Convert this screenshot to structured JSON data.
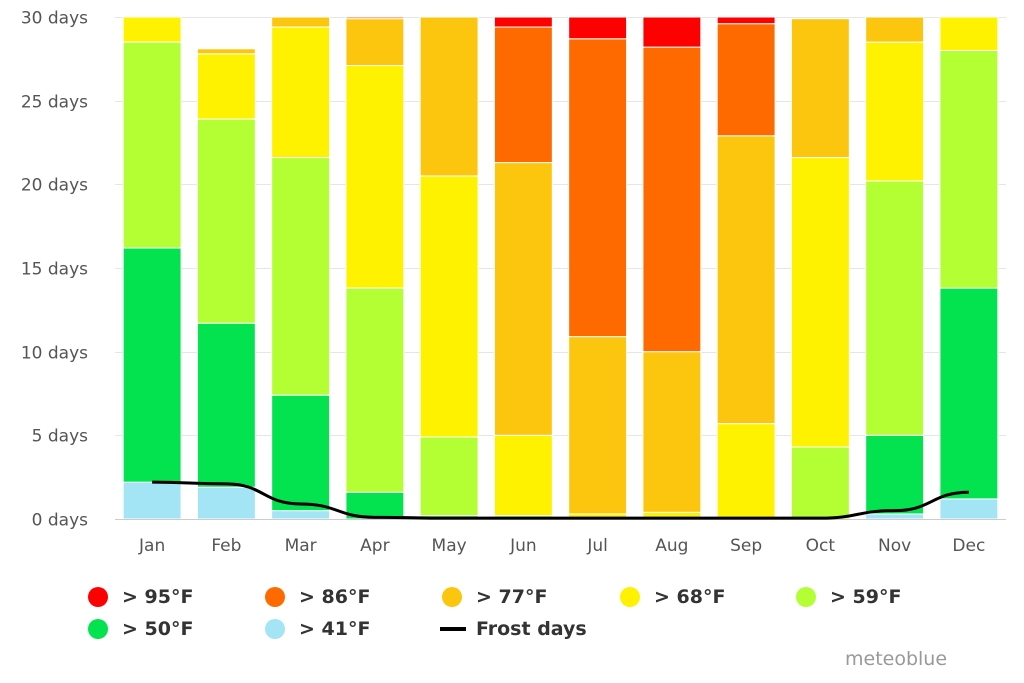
{
  "chart_data": {
    "type": "bar",
    "stacked": true,
    "title": "",
    "xlabel": "",
    "ylabel": "",
    "ylim": [
      0,
      30
    ],
    "y_ticks": [
      "0 days",
      "5 days",
      "10 days",
      "15 days",
      "20 days",
      "25 days",
      "30 days"
    ],
    "y_tick_values": [
      0,
      5,
      10,
      15,
      20,
      25,
      30
    ],
    "grid": true,
    "categories": [
      "Jan",
      "Feb",
      "Mar",
      "Apr",
      "May",
      "Jun",
      "Jul",
      "Aug",
      "Sep",
      "Oct",
      "Nov",
      "Dec"
    ],
    "series": [
      {
        "name": "> 41°F",
        "color": "#a3e4f5",
        "values": [
          2.2,
          1.9,
          0.5,
          0.0,
          0.0,
          0.0,
          0.0,
          0.0,
          0.0,
          0.0,
          0.3,
          1.2
        ]
      },
      {
        "name": "> 50°F",
        "color": "#02e34f",
        "values": [
          14.0,
          9.8,
          6.9,
          1.6,
          0.2,
          0.0,
          0.0,
          0.0,
          0.0,
          0.0,
          4.7,
          12.6
        ]
      },
      {
        "name": "> 59°F",
        "color": "#b3ff33",
        "values": [
          12.3,
          12.2,
          14.2,
          12.2,
          4.7,
          0.2,
          0.0,
          0.0,
          0.1,
          4.3,
          15.2,
          14.2
        ]
      },
      {
        "name": "> 68°F",
        "color": "#fff200",
        "values": [
          1.5,
          3.9,
          7.8,
          13.3,
          15.6,
          4.8,
          0.3,
          0.4,
          5.6,
          17.3,
          8.3,
          2.0
        ]
      },
      {
        "name": "> 77°F",
        "color": "#fdc60e",
        "values": [
          0.0,
          0.3,
          0.6,
          2.8,
          9.5,
          16.3,
          10.6,
          9.6,
          17.2,
          8.3,
          1.5,
          0.0
        ]
      },
      {
        "name": "> 86°F",
        "color": "#ff6a00",
        "values": [
          0.0,
          0.0,
          0.0,
          0.1,
          0.0,
          8.1,
          17.8,
          18.2,
          6.7,
          0.0,
          0.0,
          0.0
        ]
      },
      {
        "name": "> 95°F",
        "color": "#ff0000",
        "values": [
          0.0,
          0.0,
          0.0,
          0.0,
          0.0,
          0.6,
          1.3,
          1.8,
          0.4,
          0.0,
          0.0,
          0.0
        ]
      }
    ],
    "line_series": {
      "name": "Frost days",
      "color": "#000000",
      "values": [
        2.2,
        2.1,
        0.9,
        0.1,
        0.05,
        0.05,
        0.05,
        0.05,
        0.05,
        0.05,
        0.5,
        1.6
      ]
    },
    "legend": {
      "placement": "bottom",
      "items": [
        {
          "label": "> 95°F",
          "color": "#ff0000",
          "type": "dot"
        },
        {
          "label": "> 86°F",
          "color": "#ff6a00",
          "type": "dot"
        },
        {
          "label": "> 77°F",
          "color": "#fdc60e",
          "type": "dot"
        },
        {
          "label": "> 68°F",
          "color": "#fff200",
          "type": "dot"
        },
        {
          "label": "> 59°F",
          "color": "#b3ff33",
          "type": "dot"
        },
        {
          "label": "> 50°F",
          "color": "#02e34f",
          "type": "dot"
        },
        {
          "label": "> 41°F",
          "color": "#a3e4f5",
          "type": "dot"
        },
        {
          "label": "Frost days",
          "color": "#000000",
          "type": "line"
        }
      ]
    }
  },
  "credit": "meteoblue"
}
